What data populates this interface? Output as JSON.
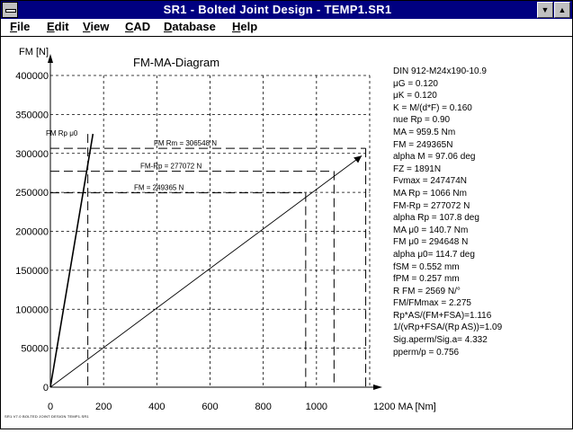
{
  "window": {
    "title": "SR1  -  Bolted Joint Design  -  TEMP1.SR1",
    "minimize_glyph": "▼",
    "maximize_glyph": "▲"
  },
  "menu": [
    "File",
    "Edit",
    "View",
    "CAD",
    "Database",
    "Help"
  ],
  "chart_data": {
    "type": "line",
    "title": "FM-MA-Diagram",
    "ylabel": "FM [N]",
    "xlabel": "1200 MA [Nm]",
    "x_ticks": [
      "0",
      "200",
      "400",
      "600",
      "800",
      "1000"
    ],
    "y_ticks": [
      "0",
      "50000",
      "100000",
      "150000",
      "200000",
      "250000",
      "300000",
      "350000",
      "400000"
    ],
    "xlim": [
      0,
      1200
    ],
    "ylim": [
      0,
      400000
    ],
    "grid": true,
    "series": [
      {
        "name": "FM Rp μ0",
        "x": [
          0,
          160
        ],
        "y": [
          0,
          325000
        ]
      },
      {
        "x": [
          0,
          1170
        ],
        "y": [
          0,
          297000
        ]
      }
    ],
    "reference_lines": [
      {
        "label": "FM Rm = 306548 N",
        "y": 306548,
        "x_end": 1185
      },
      {
        "label": "FM-Rp = 277072 N",
        "y": 277072,
        "x_end": 1066
      },
      {
        "label": "FM = 249365 N",
        "y": 249365,
        "x_end": 959.5
      }
    ],
    "vertical_refs": [
      {
        "x": 140.7
      },
      {
        "x": 959.5
      },
      {
        "x": 1066
      },
      {
        "x": 1185
      }
    ]
  },
  "results": [
    "DIN 912-M24x190-10.9",
    "μG = 0.120",
    "μK = 0.120",
    "K = M/(d*F) = 0.160",
    "nue Rp = 0.90",
    "MA = 959.5 Nm",
    "FM = 249365N",
    "alpha M = 97.06 deg",
    "FZ = 1891N",
    "Fvmax = 247474N",
    "MA Rp = 1066 Nm",
    "FM-Rp = 277072 N",
    "alpha Rp = 107.8 deg",
    "MA μ0 = 140.7 Nm",
    "FM μ0 = 294648 N",
    "alpha μ0= 114.7 deg",
    "fSM = 0.552 mm",
    "fPM = 0.257 mm",
    "R FM = 2569 N/°",
    "FM/FMmax = 2.275",
    "Rp*AS/(FM+FSA)=1.116",
    "1/(vRp+FSA/(Rp AS))=1.09",
    "Sig.aperm/Sig.a= 4.332",
    "pperm/p = 0.756"
  ],
  "footer": "SR1 V7.0  BOLTED JOINT DESIGN  TEMP1.SR1"
}
